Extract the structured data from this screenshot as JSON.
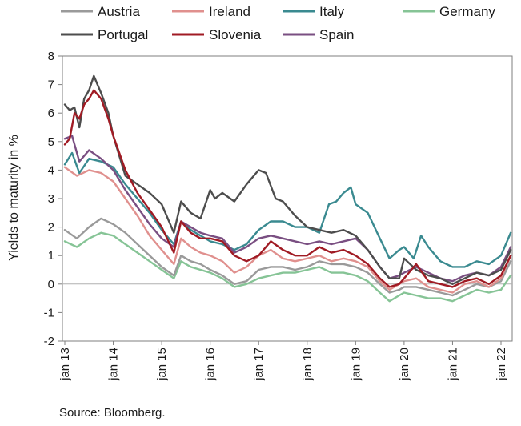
{
  "source_note": "Source: Bloomberg.",
  "chart_data": {
    "type": "line",
    "ylabel": "Yields to maturity in %",
    "xlabel": "",
    "ylim": [
      -2,
      8
    ],
    "yticks": [
      -2,
      -1,
      0,
      1,
      2,
      3,
      4,
      5,
      6,
      7,
      8
    ],
    "xlim": [
      2013.0,
      2022.3
    ],
    "xticks": [
      {
        "label": "jan 13",
        "x": 2013
      },
      {
        "label": "jan 14",
        "x": 2014
      },
      {
        "label": "jan 15",
        "x": 2015
      },
      {
        "label": "jan 16",
        "x": 2016
      },
      {
        "label": "jan 17",
        "x": 2017
      },
      {
        "label": "jan 18",
        "x": 2018
      },
      {
        "label": "jan 19",
        "x": 2019
      },
      {
        "label": "jan 20",
        "x": 2020
      },
      {
        "label": "jan 21",
        "x": 2021
      },
      {
        "label": "jan 22",
        "x": 2022
      }
    ],
    "grid": false,
    "legend_position": "top",
    "series": [
      {
        "name": "Austria",
        "color": "#9a9a9a",
        "x": [
          2013.0,
          2013.25,
          2013.5,
          2013.75,
          2014.0,
          2014.25,
          2014.5,
          2014.75,
          2015.0,
          2015.25,
          2015.4,
          2015.6,
          2015.8,
          2016.0,
          2016.25,
          2016.5,
          2016.75,
          2017.0,
          2017.25,
          2017.5,
          2017.75,
          2018.0,
          2018.25,
          2018.5,
          2018.75,
          2019.0,
          2019.25,
          2019.5,
          2019.7,
          2019.9,
          2020.0,
          2020.25,
          2020.5,
          2020.75,
          2021.0,
          2021.25,
          2021.5,
          2021.75,
          2022.0,
          2022.2
        ],
        "y": [
          1.9,
          1.6,
          2.0,
          2.3,
          2.1,
          1.8,
          1.4,
          1.0,
          0.6,
          0.3,
          1.0,
          0.8,
          0.7,
          0.5,
          0.3,
          0.0,
          0.1,
          0.5,
          0.6,
          0.6,
          0.5,
          0.6,
          0.8,
          0.7,
          0.7,
          0.6,
          0.4,
          0.0,
          -0.3,
          -0.2,
          -0.1,
          -0.1,
          -0.2,
          -0.3,
          -0.4,
          -0.2,
          0.0,
          -0.1,
          0.1,
          0.8
        ]
      },
      {
        "name": "Ireland",
        "color": "#e0908e",
        "x": [
          2013.0,
          2013.25,
          2013.5,
          2013.75,
          2014.0,
          2014.25,
          2014.5,
          2014.75,
          2015.0,
          2015.25,
          2015.4,
          2015.6,
          2015.8,
          2016.0,
          2016.25,
          2016.5,
          2016.75,
          2017.0,
          2017.25,
          2017.5,
          2017.75,
          2018.0,
          2018.25,
          2018.5,
          2018.75,
          2019.0,
          2019.25,
          2019.5,
          2019.7,
          2019.9,
          2020.0,
          2020.25,
          2020.5,
          2020.75,
          2021.0,
          2021.25,
          2021.5,
          2021.75,
          2022.0,
          2022.2
        ],
        "y": [
          4.1,
          3.8,
          4.0,
          3.9,
          3.6,
          3.0,
          2.4,
          1.7,
          1.2,
          0.7,
          1.6,
          1.3,
          1.1,
          1.0,
          0.8,
          0.4,
          0.6,
          1.0,
          1.2,
          0.9,
          0.8,
          0.9,
          1.0,
          0.8,
          0.9,
          0.8,
          0.6,
          0.1,
          -0.2,
          0.0,
          0.1,
          0.2,
          -0.1,
          -0.2,
          -0.3,
          0.0,
          0.1,
          -0.1,
          0.2,
          1.0
        ]
      },
      {
        "name": "Italy",
        "color": "#3a8a90",
        "x": [
          2013.0,
          2013.15,
          2013.3,
          2013.5,
          2013.75,
          2014.0,
          2014.25,
          2014.5,
          2014.75,
          2015.0,
          2015.25,
          2015.4,
          2015.6,
          2015.8,
          2016.0,
          2016.25,
          2016.5,
          2016.75,
          2017.0,
          2017.25,
          2017.5,
          2017.75,
          2018.0,
          2018.25,
          2018.45,
          2018.6,
          2018.75,
          2018.9,
          2019.0,
          2019.25,
          2019.5,
          2019.7,
          2019.9,
          2020.0,
          2020.2,
          2020.35,
          2020.5,
          2020.75,
          2021.0,
          2021.25,
          2021.5,
          2021.75,
          2022.0,
          2022.2
        ],
        "y": [
          4.2,
          4.6,
          3.9,
          4.4,
          4.3,
          4.1,
          3.5,
          3.0,
          2.5,
          1.9,
          1.4,
          2.2,
          1.9,
          1.7,
          1.5,
          1.4,
          1.2,
          1.4,
          1.9,
          2.2,
          2.2,
          2.0,
          2.0,
          1.8,
          2.8,
          2.9,
          3.2,
          3.4,
          2.8,
          2.5,
          1.6,
          0.9,
          1.2,
          1.3,
          0.9,
          1.7,
          1.3,
          0.8,
          0.6,
          0.6,
          0.8,
          0.7,
          1.0,
          1.8
        ]
      },
      {
        "name": "Germany",
        "color": "#86c496",
        "x": [
          2013.0,
          2013.25,
          2013.5,
          2013.75,
          2014.0,
          2014.25,
          2014.5,
          2014.75,
          2015.0,
          2015.25,
          2015.4,
          2015.6,
          2015.8,
          2016.0,
          2016.25,
          2016.5,
          2016.75,
          2017.0,
          2017.25,
          2017.5,
          2017.75,
          2018.0,
          2018.25,
          2018.5,
          2018.75,
          2019.0,
          2019.25,
          2019.5,
          2019.7,
          2019.9,
          2020.0,
          2020.25,
          2020.5,
          2020.75,
          2021.0,
          2021.25,
          2021.5,
          2021.75,
          2022.0,
          2022.2
        ],
        "y": [
          1.5,
          1.3,
          1.6,
          1.8,
          1.7,
          1.4,
          1.1,
          0.8,
          0.5,
          0.2,
          0.8,
          0.6,
          0.5,
          0.4,
          0.2,
          -0.1,
          0.0,
          0.2,
          0.3,
          0.4,
          0.4,
          0.5,
          0.6,
          0.4,
          0.4,
          0.3,
          0.1,
          -0.3,
          -0.6,
          -0.4,
          -0.3,
          -0.4,
          -0.5,
          -0.5,
          -0.6,
          -0.4,
          -0.2,
          -0.3,
          -0.2,
          0.3
        ]
      },
      {
        "name": "Portugal",
        "color": "#4d4d4d",
        "x": [
          2013.0,
          2013.1,
          2013.2,
          2013.3,
          2013.4,
          2013.5,
          2013.6,
          2013.75,
          2013.9,
          2014.0,
          2014.25,
          2014.5,
          2014.75,
          2015.0,
          2015.25,
          2015.4,
          2015.6,
          2015.8,
          2016.0,
          2016.1,
          2016.25,
          2016.5,
          2016.75,
          2017.0,
          2017.15,
          2017.35,
          2017.5,
          2017.75,
          2018.0,
          2018.25,
          2018.5,
          2018.75,
          2019.0,
          2019.25,
          2019.5,
          2019.7,
          2019.9,
          2020.0,
          2020.25,
          2020.5,
          2020.75,
          2021.0,
          2021.25,
          2021.5,
          2021.75,
          2022.0,
          2022.2
        ],
        "y": [
          6.3,
          6.1,
          6.2,
          5.5,
          6.5,
          6.8,
          7.3,
          6.7,
          6.0,
          5.2,
          3.8,
          3.5,
          3.2,
          2.8,
          1.8,
          2.9,
          2.5,
          2.3,
          3.3,
          3.0,
          3.2,
          2.9,
          3.5,
          4.0,
          3.9,
          3.0,
          2.9,
          2.4,
          2.0,
          1.9,
          1.8,
          1.9,
          1.7,
          1.2,
          0.6,
          0.2,
          0.2,
          0.9,
          0.5,
          0.3,
          0.2,
          0.0,
          0.2,
          0.4,
          0.3,
          0.5,
          1.2
        ]
      },
      {
        "name": "Slovenia",
        "color": "#a01b24",
        "x": [
          2013.0,
          2013.1,
          2013.2,
          2013.3,
          2013.4,
          2013.5,
          2013.6,
          2013.75,
          2013.9,
          2014.0,
          2014.25,
          2014.5,
          2014.75,
          2015.0,
          2015.25,
          2015.4,
          2015.6,
          2015.8,
          2016.0,
          2016.25,
          2016.5,
          2016.75,
          2017.0,
          2017.25,
          2017.5,
          2017.75,
          2018.0,
          2018.25,
          2018.5,
          2018.75,
          2019.0,
          2019.25,
          2019.5,
          2019.7,
          2019.9,
          2020.0,
          2020.25,
          2020.5,
          2020.75,
          2021.0,
          2021.25,
          2021.5,
          2021.75,
          2022.0,
          2022.2
        ],
        "y": [
          4.9,
          5.1,
          6.0,
          5.8,
          6.3,
          6.5,
          6.8,
          6.5,
          5.8,
          5.2,
          4.0,
          3.2,
          2.6,
          2.0,
          1.1,
          2.2,
          1.8,
          1.6,
          1.6,
          1.5,
          1.0,
          0.8,
          1.0,
          1.5,
          1.2,
          1.0,
          1.0,
          1.3,
          1.1,
          1.2,
          1.0,
          0.7,
          0.2,
          -0.1,
          0.0,
          0.2,
          0.7,
          0.1,
          0.0,
          -0.1,
          0.1,
          0.2,
          0.0,
          0.3,
          1.0
        ]
      },
      {
        "name": "Spain",
        "color": "#7a4f82",
        "x": [
          2013.0,
          2013.15,
          2013.3,
          2013.5,
          2013.75,
          2014.0,
          2014.25,
          2014.5,
          2014.75,
          2015.0,
          2015.25,
          2015.4,
          2015.6,
          2015.8,
          2016.0,
          2016.25,
          2016.5,
          2016.75,
          2017.0,
          2017.25,
          2017.5,
          2017.75,
          2018.0,
          2018.25,
          2018.5,
          2018.75,
          2019.0,
          2019.25,
          2019.5,
          2019.7,
          2019.9,
          2020.0,
          2020.25,
          2020.5,
          2020.75,
          2021.0,
          2021.25,
          2021.5,
          2021.75,
          2022.0,
          2022.2
        ],
        "y": [
          5.1,
          5.2,
          4.3,
          4.7,
          4.4,
          4.0,
          3.3,
          2.7,
          2.1,
          1.6,
          1.3,
          2.2,
          2.0,
          1.8,
          1.7,
          1.6,
          1.1,
          1.3,
          1.6,
          1.7,
          1.6,
          1.5,
          1.4,
          1.5,
          1.4,
          1.5,
          1.6,
          1.2,
          0.6,
          0.2,
          0.3,
          0.4,
          0.6,
          0.4,
          0.2,
          0.1,
          0.3,
          0.4,
          0.3,
          0.6,
          1.3
        ]
      }
    ]
  }
}
